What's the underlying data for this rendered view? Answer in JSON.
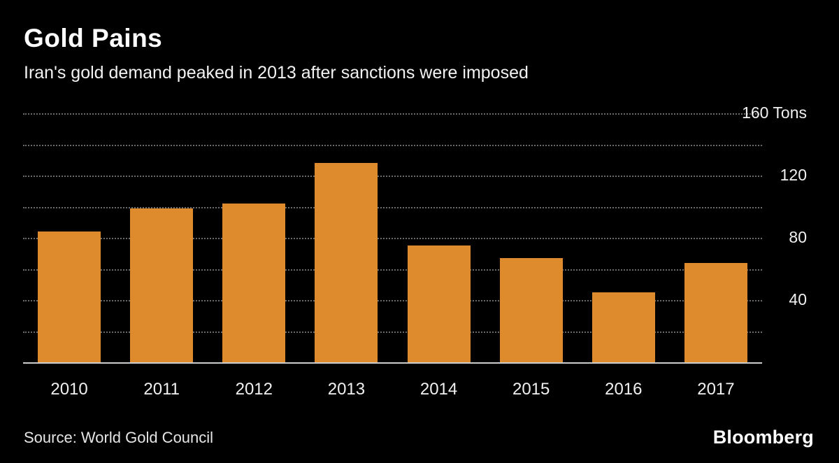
{
  "header": {
    "title": "Gold Pains",
    "subtitle": "Iran's gold demand peaked in 2013 after sanctions were imposed"
  },
  "footer": {
    "source": "Source: World Gold Council",
    "brand": "Bloomberg"
  },
  "chart_data": {
    "type": "bar",
    "title": "Gold Pains",
    "subtitle": "Iran's gold demand peaked in 2013 after sanctions were imposed",
    "categories": [
      "2010",
      "2011",
      "2012",
      "2013",
      "2014",
      "2015",
      "2016",
      "2017"
    ],
    "values": [
      84,
      99,
      102,
      128,
      75,
      67,
      45,
      64
    ],
    "xlabel": "",
    "ylabel": "Tons",
    "ylim": [
      0,
      160
    ],
    "gridline_step": 20,
    "grid": "horizontal-dotted",
    "legend_position": "none",
    "y_ticks": [
      {
        "value": 160,
        "label": "160 Tons"
      },
      {
        "value": 120,
        "label": "120"
      },
      {
        "value": 80,
        "label": "80"
      },
      {
        "value": 40,
        "label": "40"
      }
    ],
    "colors": {
      "bar": "#dd8b2d",
      "grid": "#6b6b6b",
      "axis": "#cccccc",
      "background": "#000000",
      "text": "#ffffff"
    }
  }
}
